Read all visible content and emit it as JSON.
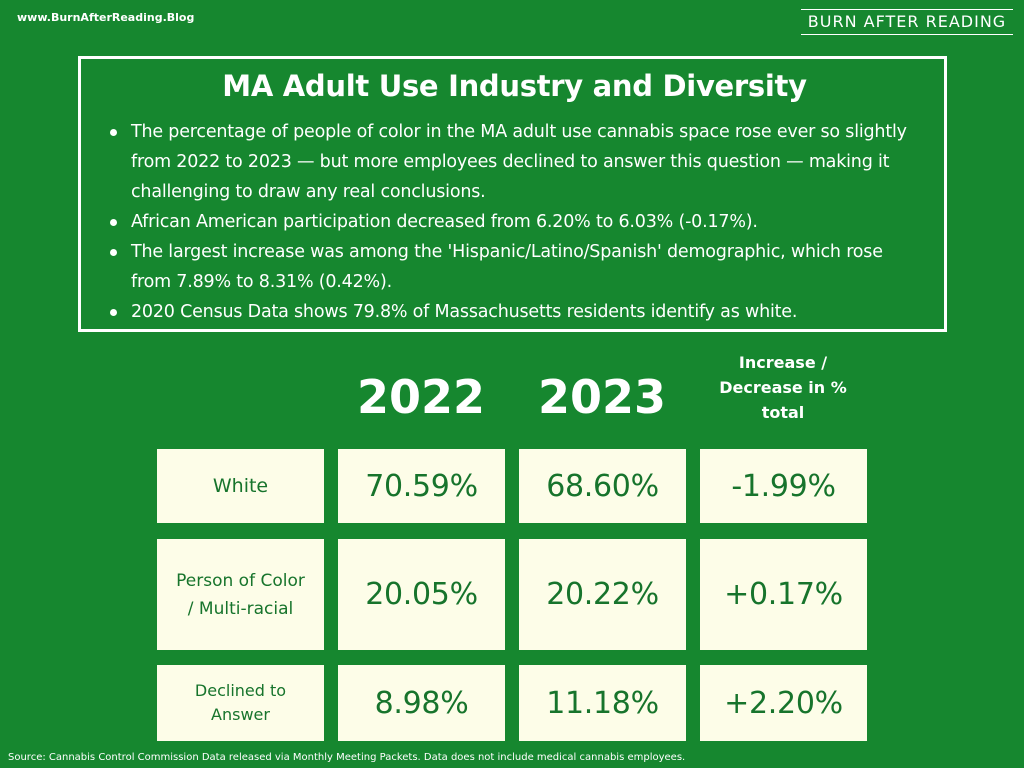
{
  "header": {
    "site_url": "www.BurnAfterReading.Blog",
    "brand": "BURN AFTER READING"
  },
  "info": {
    "title": "MA Adult Use Industry and Diversity",
    "bullets": [
      "The percentage of people of color in the MA adult use cannabis space rose ever so slightly from 2022 to 2023 — but more employees declined to answer this question — making it challenging to draw any real conclusions.",
      "African American participation decreased from 6.20% to 6.03% (-0.17%).",
      "The largest increase was among the 'Hispanic/Latino/Spanish' demographic, which rose from 7.89% to 8.31% (0.42%).",
      "2020 Census Data shows 79.8% of Massachusetts residents identify as white."
    ]
  },
  "table": {
    "columns": [
      "2022",
      "2023"
    ],
    "delta_header": [
      "Increase /",
      "Decrease in %",
      "total"
    ],
    "rows": [
      {
        "label": "White",
        "y2022": "70.59%",
        "y2023": "68.60%",
        "change": "-1.99%"
      },
      {
        "label": "Person of Color / Multi-racial",
        "y2022": "20.05%",
        "y2023": "20.22%",
        "change": "+0.17%"
      },
      {
        "label": "Declined to Answer",
        "y2022": "8.98%",
        "y2023": "11.18%",
        "change": "+2.20%"
      }
    ]
  },
  "footer": {
    "source": "Source: Cannabis Control Commission Data released via Monthly Meeting Packets. Data does not include medical cannabis employees."
  },
  "colors": {
    "background": "#16872f",
    "cell_background": "#fdfde8",
    "cell_text": "#17742c"
  }
}
